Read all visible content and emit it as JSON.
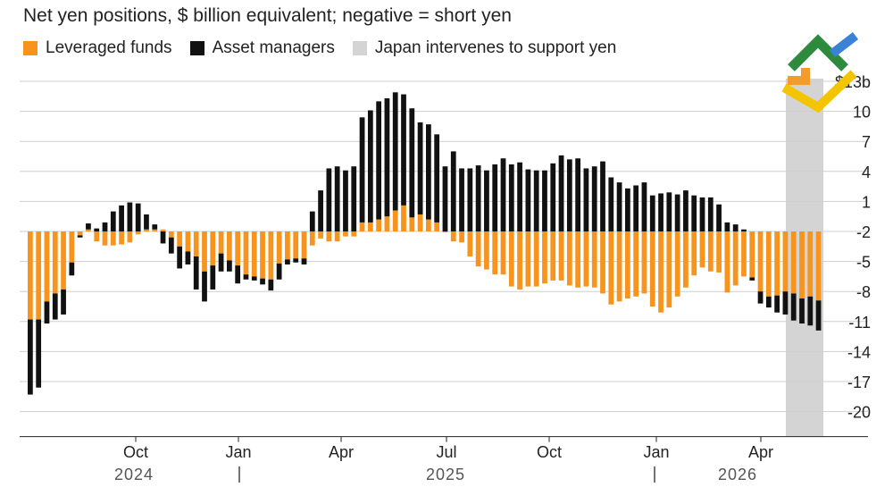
{
  "title": "Net yen positions, $ billion equivalent; negative = short yen",
  "legend": [
    {
      "label": "Leveraged funds",
      "color": "#f7941d"
    },
    {
      "label": "Asset managers",
      "color": "#111111"
    },
    {
      "label": "Japan intervenes to support yen",
      "color": "#d4d4d4"
    }
  ],
  "logo": {
    "icon": "green-orange-yellow-blue-chevron-logo"
  },
  "chart_data": {
    "type": "bar",
    "stacked": true,
    "ylim": [
      -22.5,
      13
    ],
    "y_ticks": [
      13,
      10,
      7,
      4,
      1,
      -2,
      -5,
      -8,
      -11,
      -14,
      -17,
      -20
    ],
    "y_tick_labels": [
      "$13b",
      "10",
      "7",
      "4",
      "1",
      "-2",
      "-5",
      "-8",
      "-11",
      "-14",
      "-17",
      "-20"
    ],
    "x_tick_labels": [
      "Oct",
      "Jan",
      "Apr",
      "Jul",
      "Oct",
      "Jan",
      "Apr"
    ],
    "x_tick_dates": [
      "2024-10",
      "2025-01",
      "2025-04",
      "2025-07",
      "2025-10",
      "2026-01",
      "2026-04"
    ],
    "year_labels": [
      "2024",
      "2025",
      "2026"
    ],
    "grid": true,
    "legend_position": "top-left",
    "shaded_region": {
      "label": "Japan intervenes to support yen",
      "from": "2026-05",
      "to": "2026-06"
    },
    "series": [
      {
        "name": "Leveraged funds",
        "color": "#f7941d",
        "values": [
          -8.8,
          -8.8,
          -7.0,
          -6.2,
          -5.8,
          -3.1,
          -0.4,
          0.2,
          -1.0,
          -1.4,
          -1.4,
          -1.3,
          -1.1,
          -0.3,
          0.2,
          0.2,
          0.2,
          -0.6,
          -1.5,
          -2.0,
          -2.5,
          -4.0,
          -3.4,
          -2.2,
          -2.9,
          -3.4,
          -4.3,
          -4.5,
          -4.7,
          -4.8,
          -3.2,
          -2.8,
          -2.7,
          -2.7,
          -1.4,
          -0.7,
          -1.0,
          -1.0,
          -0.5,
          -0.5,
          0.9,
          0.9,
          1.2,
          1.5,
          2.1,
          2.6,
          1.4,
          1.7,
          1.2,
          0.9,
          -0.1,
          -1.0,
          -1.1,
          -2.5,
          -3.5,
          -3.8,
          -4.3,
          -4.3,
          -5.5,
          -5.8,
          -5.5,
          -5.5,
          -5.2,
          -4.9,
          -4.9,
          -5.4,
          -5.6,
          -5.5,
          -5.6,
          -6.2,
          -7.3,
          -7.0,
          -6.7,
          -6.5,
          -6.2,
          -7.5,
          -8.1,
          -7.6,
          -6.5,
          -5.6,
          -4.4,
          -3.6,
          -4.0,
          -4.1,
          -6.1,
          -5.4,
          -4.5,
          -4.6,
          -6.0,
          -6.5,
          -6.4,
          -6.0,
          -6.2,
          -6.7,
          -6.5,
          -6.9
        ]
      },
      {
        "name": "Asset managers",
        "color": "#111111",
        "values": [
          -7.5,
          -6.8,
          -2.2,
          -2.6,
          -2.5,
          -1.3,
          -0.2,
          0.6,
          0.3,
          0.9,
          2.0,
          2.6,
          2.9,
          2.8,
          1.5,
          0.5,
          -1.2,
          -1.6,
          -2.2,
          -1.3,
          -3.3,
          -3.0,
          -2.4,
          -1.8,
          -1.1,
          -1.8,
          -0.5,
          -0.4,
          -0.6,
          -1.1,
          -1.6,
          -0.5,
          -0.4,
          -0.6,
          2.0,
          4.1,
          6.3,
          6.5,
          6.1,
          6.5,
          10.5,
          11.2,
          11.8,
          11.8,
          11.8,
          11.1,
          10.9,
          9.2,
          9.5,
          8.8,
          6.5,
          8.0,
          6.3,
          6.3,
          6.6,
          6.1,
          6.7,
          7.3,
          6.7,
          6.9,
          6.2,
          6.1,
          6.1,
          6.8,
          7.6,
          7.2,
          7.3,
          6.3,
          6.5,
          7.0,
          5.4,
          4.9,
          4.3,
          4.6,
          4.9,
          3.6,
          3.8,
          3.9,
          3.7,
          4.1,
          3.6,
          3.4,
          3.4,
          2.7,
          0.9,
          0.7,
          0.2,
          -0.3,
          -1.2,
          -1.1,
          -1.7,
          -2.3,
          -2.7,
          -2.5,
          -2.9,
          -3.0
        ]
      }
    ]
  }
}
